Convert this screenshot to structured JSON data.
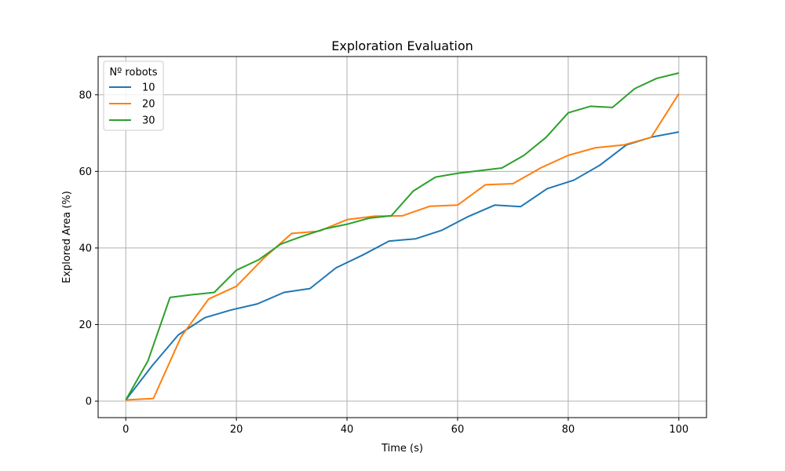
{
  "chart_data": {
    "type": "line",
    "title": "Exploration Evaluation",
    "xlabel": "Time (s)",
    "ylabel": "Explored Area (%)",
    "xlim": [
      -5,
      105
    ],
    "ylim": [
      -4.3,
      90
    ],
    "xticks": [
      0,
      20,
      40,
      60,
      80,
      100
    ],
    "yticks": [
      0,
      20,
      40,
      60,
      80
    ],
    "grid": true,
    "legend": {
      "title": "Nº robots",
      "placement": "top-left"
    },
    "series": [
      {
        "name": "10",
        "color": "#1f77b4",
        "points": [
          [
            0,
            0.3
          ],
          [
            4.8,
            9.3
          ],
          [
            9.5,
            17.3
          ],
          [
            14.3,
            21.8
          ],
          [
            19,
            23.8
          ],
          [
            23.8,
            25.4
          ],
          [
            28.6,
            28.4
          ],
          [
            33.3,
            29.4
          ],
          [
            38,
            34.8
          ],
          [
            42.9,
            38.2
          ],
          [
            47.6,
            41.8
          ],
          [
            52.4,
            42.4
          ],
          [
            57.1,
            44.6
          ],
          [
            61.9,
            48.2
          ],
          [
            66.7,
            51.2
          ],
          [
            71.4,
            50.8
          ],
          [
            76.2,
            55.5
          ],
          [
            81,
            57.7
          ],
          [
            85.7,
            61.6
          ],
          [
            90.5,
            66.9
          ],
          [
            95.2,
            69
          ],
          [
            100,
            70.3
          ]
        ]
      },
      {
        "name": "20",
        "color": "#ff7f0e",
        "points": [
          [
            0,
            0.3
          ],
          [
            5,
            0.7
          ],
          [
            10,
            16.8
          ],
          [
            15,
            26.7
          ],
          [
            20,
            30
          ],
          [
            25,
            37.4
          ],
          [
            30,
            43.8
          ],
          [
            35,
            44.4
          ],
          [
            40,
            47.4
          ],
          [
            45,
            48.3
          ],
          [
            50,
            48.4
          ],
          [
            55,
            50.9
          ],
          [
            60,
            51.2
          ],
          [
            65,
            56.5
          ],
          [
            70,
            56.8
          ],
          [
            75,
            60.9
          ],
          [
            80,
            64.2
          ],
          [
            85,
            66.2
          ],
          [
            90,
            66.9
          ],
          [
            95,
            68.9
          ],
          [
            100,
            80.3
          ]
        ]
      },
      {
        "name": "30",
        "color": "#2ca02c",
        "points": [
          [
            0,
            0.3
          ],
          [
            4,
            10.5
          ],
          [
            8,
            27.1
          ],
          [
            12,
            27.8
          ],
          [
            16,
            28.4
          ],
          [
            20,
            34.2
          ],
          [
            24,
            36.9
          ],
          [
            28,
            41
          ],
          [
            32,
            43.1
          ],
          [
            36,
            45
          ],
          [
            40,
            46.2
          ],
          [
            44,
            47.8
          ],
          [
            48,
            48.4
          ],
          [
            52,
            54.9
          ],
          [
            56,
            58.5
          ],
          [
            60,
            59.5
          ],
          [
            64,
            60.2
          ],
          [
            68,
            60.9
          ],
          [
            72,
            64.2
          ],
          [
            76,
            68.9
          ],
          [
            80,
            75.3
          ],
          [
            84,
            77
          ],
          [
            88,
            76.7
          ],
          [
            92,
            81.6
          ],
          [
            96,
            84.3
          ],
          [
            100,
            85.7
          ]
        ]
      }
    ]
  }
}
